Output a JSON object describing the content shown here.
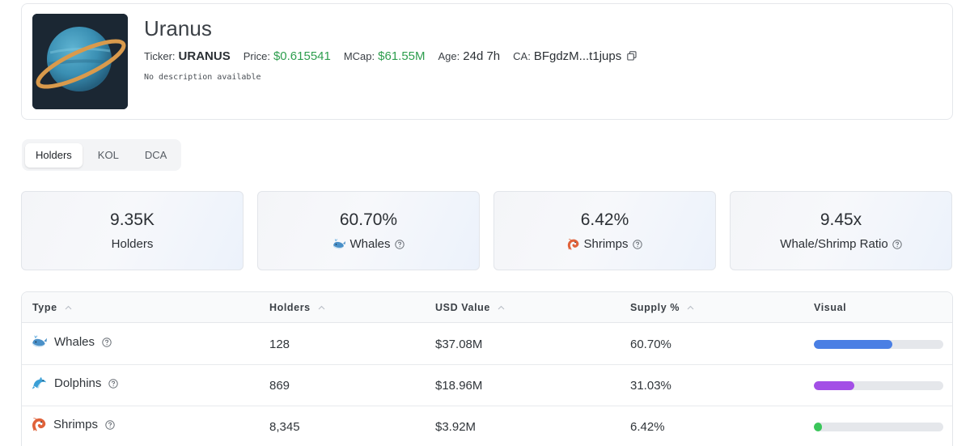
{
  "token": {
    "name": "Uranus",
    "ticker_label": "Ticker:",
    "ticker": "URANUS",
    "price_label": "Price:",
    "price": "$0.615541",
    "mcap_label": "MCap:",
    "mcap": "$61.55M",
    "age_label": "Age:",
    "age": "24d 7h",
    "ca_label": "CA:",
    "ca": "BFgdzM...t1jups",
    "description": "No description available",
    "logo_icon": "planet-uranus-icon"
  },
  "tabs": [
    {
      "label": "Holders",
      "active": true
    },
    {
      "label": "KOL",
      "active": false
    },
    {
      "label": "DCA",
      "active": false
    }
  ],
  "stats": [
    {
      "value": "9.35K",
      "label": "Holders",
      "icon": null
    },
    {
      "value": "60.70%",
      "label": "Whales",
      "icon": "whale-icon"
    },
    {
      "value": "6.42%",
      "label": "Shrimps",
      "icon": "shrimp-icon"
    },
    {
      "value": "9.45x",
      "label": "Whale/Shrimp Ratio",
      "icon": null
    }
  ],
  "table": {
    "headers": {
      "type": "Type",
      "holders": "Holders",
      "usd_value": "USD Value",
      "supply": "Supply %",
      "visual": "Visual"
    },
    "rows": [
      {
        "type": "Whales",
        "icon": "whale-icon",
        "holders": "128",
        "usd_value": "$37.08M",
        "supply": "60.70%",
        "bar_fraction": 0.607,
        "bar_color": "#4a7fe4"
      },
      {
        "type": "Dolphins",
        "icon": "dolphin-icon",
        "holders": "869",
        "usd_value": "$18.96M",
        "supply": "31.03%",
        "bar_fraction": 0.3103,
        "bar_color": "#a34fe6"
      },
      {
        "type": "Shrimps",
        "icon": "shrimp-icon",
        "holders": "8,345",
        "usd_value": "$3.92M",
        "supply": "6.42%",
        "bar_fraction": 0.0642,
        "bar_color": "#3ac65a"
      }
    ]
  },
  "colors": {
    "accent_green": "#2e9e4e",
    "whale_bar": "#4a7fe4",
    "dolphin_bar": "#a34fe6",
    "shrimp_bar": "#3ac65a"
  }
}
